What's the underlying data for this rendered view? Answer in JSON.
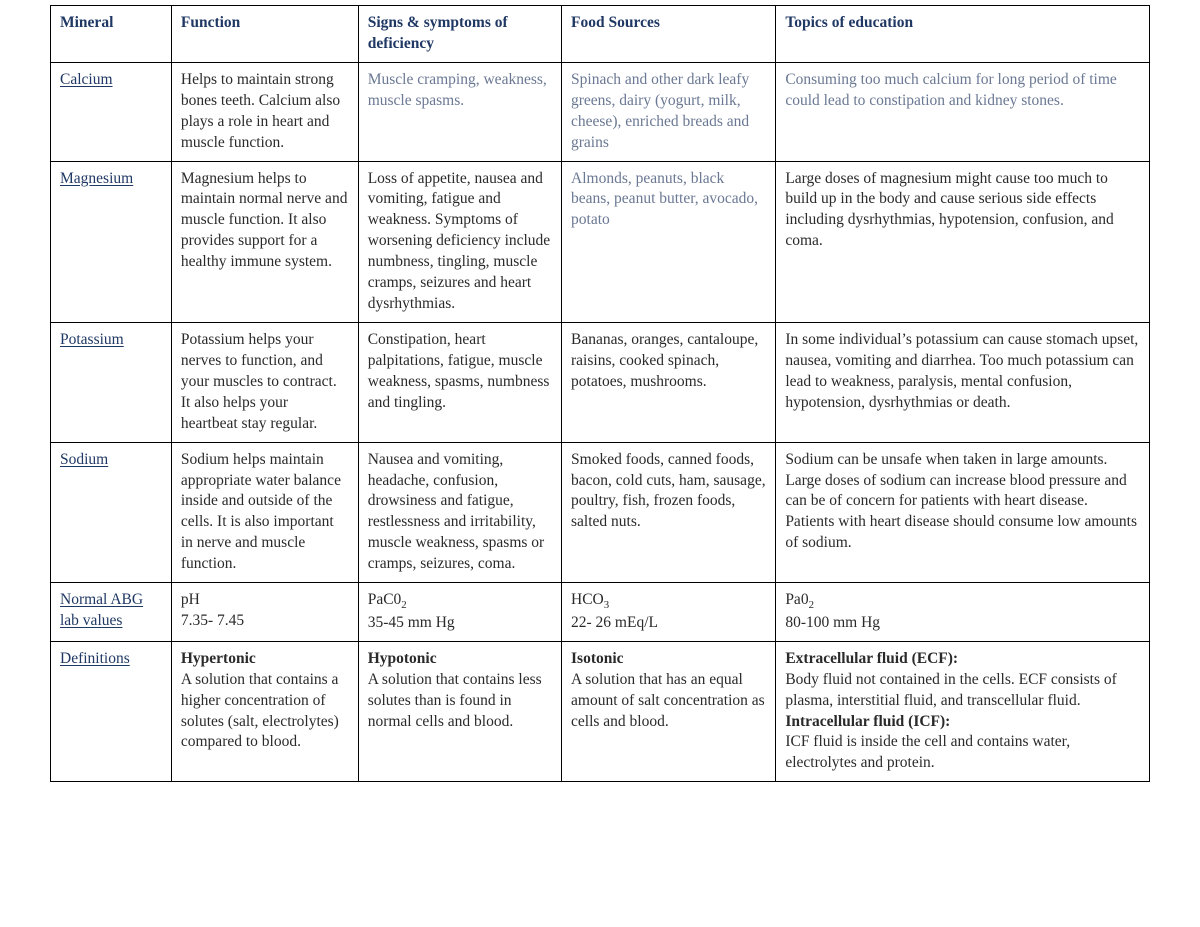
{
  "headers": {
    "mineral": "Mineral",
    "function": "Function",
    "deficiency": "Signs & symptoms of deficiency",
    "sources": "Food Sources",
    "education": "Topics of education"
  },
  "rows": {
    "calcium": {
      "name": "Calcium",
      "function": "Helps to maintain strong bones teeth. Calcium also plays a role in heart and muscle function.",
      "deficiency": "Muscle cramping, weakness, muscle spasms.",
      "sources": "Spinach and other dark leafy greens, dairy (yogurt, milk, cheese), enriched breads and grains",
      "education": "Consuming too much calcium for long period of time could lead to constipation and kidney stones."
    },
    "magnesium": {
      "name": "Magnesium",
      "function": "Magnesium helps to maintain normal nerve and muscle function. It also provides support for a healthy immune system.",
      "deficiency": "Loss of appetite, nausea and vomiting, fatigue and weakness. Symptoms of worsening deficiency include numbness, tingling, muscle cramps, seizures and heart dysrhythmias.",
      "sources": "Almonds, peanuts, black beans, peanut butter, avocado, potato",
      "education": "Large doses of magnesium might cause too much to build up in the body and cause serious side effects including dysrhythmias, hypotension, confusion, and coma."
    },
    "potassium": {
      "name": "Potassium",
      "function": "Potassium helps your nerves to function, and your muscles to contract. It also helps your heartbeat stay regular.",
      "deficiency": "Constipation, heart palpitations, fatigue, muscle weakness, spasms, numbness and tingling.",
      "sources": "Bananas, oranges, cantaloupe, raisins, cooked spinach, potatoes, mushrooms.",
      "education": "In some individual’s potassium can cause stomach upset, nausea, vomiting and diarrhea. Too much potassium can lead to weakness, paralysis, mental confusion, hypotension, dysrhythmias or death."
    },
    "sodium": {
      "name": "Sodium",
      "function": "Sodium helps maintain appropriate water balance inside and outside of the cells. It is also important in nerve and muscle function.",
      "deficiency": "Nausea and vomiting, headache, confusion, drowsiness and fatigue, restlessness and irritability, muscle weakness, spasms or cramps, seizures, coma.",
      "sources": "Smoked foods, canned foods, bacon, cold cuts, ham, sausage, poultry, fish, frozen foods, salted nuts.",
      "education": "Sodium can be unsafe when taken in large amounts. Large doses of sodium can increase blood pressure and can be of concern for patients with heart disease. Patients with heart disease should consume low amounts of sodium."
    },
    "abg": {
      "name": "Normal ABG lab values",
      "ph_label": "pH",
      "ph_value": "7.35- 7.45",
      "paco2_label": "PaC0",
      "paco2_sub": "2",
      "paco2_value": "35-45 mm Hg",
      "hco3_label": "HCO",
      "hco3_sub": "3",
      "hco3_value": "22- 26 mEq/L",
      "pao2_label": "Pa0",
      "pao2_sub": "2",
      "pao2_value": "80-100 mm Hg"
    },
    "defs": {
      "name": "Definitions",
      "hyper_title": "Hypertonic",
      "hyper_text": "A solution that contains a higher concentration of solutes (salt, electrolytes) compared to blood.",
      "hypo_title": "Hypotonic",
      "hypo_text": "A solution that contains less solutes than is found in normal cells and blood.",
      "iso_title": "Isotonic",
      "iso_text": "A solution that has an equal amount of salt concentration as cells and blood.",
      "ecf_title": "Extracellular fluid (ECF):",
      "ecf_text": "Body fluid not contained in the cells. ECF consists of plasma, interstitial fluid, and transcellular fluid.",
      "icf_title": "Intracellular fluid (ICF):",
      "icf_text": "ICF fluid is inside the cell and contains water, electrolytes and protein."
    }
  }
}
